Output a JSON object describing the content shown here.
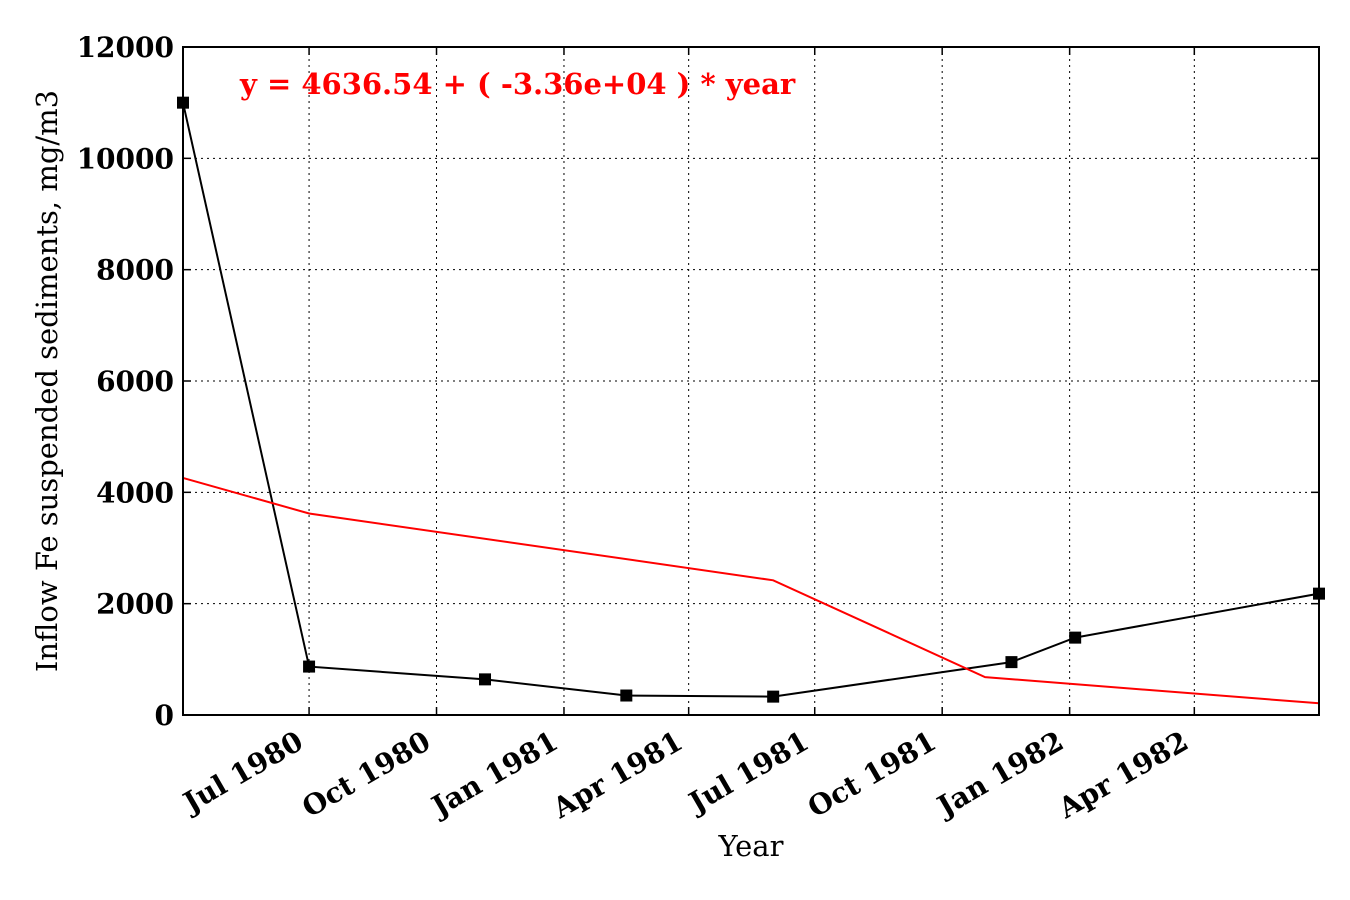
{
  "chart_data": {
    "type": "line",
    "xlabel": "Year",
    "ylabel": "Inflow Fe suspended sediments, mg/m3",
    "ylim": [
      0,
      12000
    ],
    "xlim": [
      "1980-04-01",
      "1982-06-30"
    ],
    "grid": true,
    "x_ticks": [
      {
        "date": "1980-07-01",
        "label": "Jul 1980"
      },
      {
        "date": "1980-10-01",
        "label": "Oct 1980"
      },
      {
        "date": "1981-01-01",
        "label": "Jan 1981"
      },
      {
        "date": "1981-04-01",
        "label": "Apr 1981"
      },
      {
        "date": "1981-07-01",
        "label": "Jul 1981"
      },
      {
        "date": "1981-10-01",
        "label": "Oct 1981"
      },
      {
        "date": "1982-01-01",
        "label": "Jan 1982"
      },
      {
        "date": "1982-04-01",
        "label": "Apr 1982"
      }
    ],
    "y_ticks": [
      0,
      2000,
      4000,
      6000,
      8000,
      10000,
      12000
    ],
    "annotation": {
      "text": "y = 4636.54 + ( -3.36e+04 ) * year",
      "color": "#ff0000"
    },
    "series": [
      {
        "color": "#000000",
        "marker": "square",
        "points": [
          {
            "x": "1980-04-01",
            "y": 11000
          },
          {
            "x": "1980-07-01",
            "y": 870
          },
          {
            "x": "1980-11-05",
            "y": 640
          },
          {
            "x": "1981-02-15",
            "y": 350
          },
          {
            "x": "1981-06-01",
            "y": 330
          },
          {
            "x": "1981-11-20",
            "y": 950
          },
          {
            "x": "1982-01-05",
            "y": 1390
          },
          {
            "x": "1982-06-30",
            "y": 2180
          }
        ]
      },
      {
        "color": "#ff0000",
        "marker": "none",
        "points": [
          {
            "x": "1980-04-01",
            "y": 4260
          },
          {
            "x": "1980-07-01",
            "y": 3620
          },
          {
            "x": "1981-06-01",
            "y": 2420
          },
          {
            "x": "1981-11-01",
            "y": 680
          },
          {
            "x": "1982-06-30",
            "y": 210
          }
        ]
      }
    ]
  }
}
